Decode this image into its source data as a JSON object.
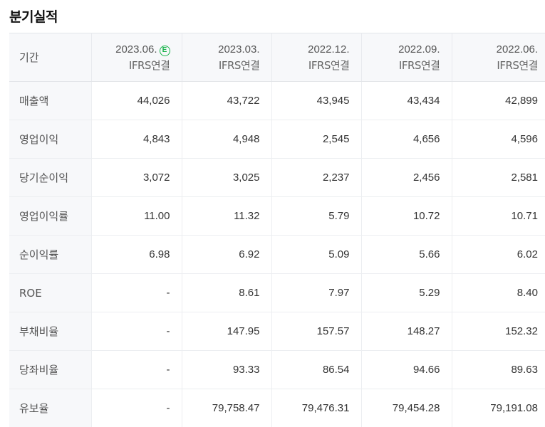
{
  "title": "분기실적",
  "header": {
    "label": "기간",
    "columns": [
      {
        "period": "2023.06.",
        "basis": "IFRS연결",
        "estimate_badge": "E"
      },
      {
        "period": "2023.03.",
        "basis": "IFRS연결"
      },
      {
        "period": "2022.12.",
        "basis": "IFRS연결"
      },
      {
        "period": "2022.09.",
        "basis": "IFRS연결"
      },
      {
        "period": "2022.06.",
        "basis": "IFRS연결"
      }
    ]
  },
  "rows": [
    {
      "label": "매출액",
      "values": [
        "44,026",
        "43,722",
        "43,945",
        "43,434",
        "42,899"
      ]
    },
    {
      "label": "영업이익",
      "values": [
        "4,843",
        "4,948",
        "2,545",
        "4,656",
        "4,596"
      ]
    },
    {
      "label": "당기순이익",
      "values": [
        "3,072",
        "3,025",
        "2,237",
        "2,456",
        "2,581"
      ]
    },
    {
      "label": "영업이익률",
      "values": [
        "11.00",
        "11.32",
        "5.79",
        "10.72",
        "10.71"
      ]
    },
    {
      "label": "순이익률",
      "values": [
        "6.98",
        "6.92",
        "5.09",
        "5.66",
        "6.02"
      ]
    },
    {
      "label": "ROE",
      "values": [
        "-",
        "8.61",
        "7.97",
        "5.29",
        "8.40"
      ]
    },
    {
      "label": "부채비율",
      "values": [
        "-",
        "147.95",
        "157.57",
        "148.27",
        "152.32"
      ]
    },
    {
      "label": "당좌비율",
      "values": [
        "-",
        "93.33",
        "86.54",
        "94.66",
        "89.63"
      ]
    },
    {
      "label": "유보율",
      "values": [
        "-",
        "79,758.47",
        "79,476.31",
        "79,454.28",
        "79,191.08"
      ]
    }
  ],
  "colors": {
    "estimate_badge": "#18b34a",
    "header_bg": "#f7f8fa"
  }
}
